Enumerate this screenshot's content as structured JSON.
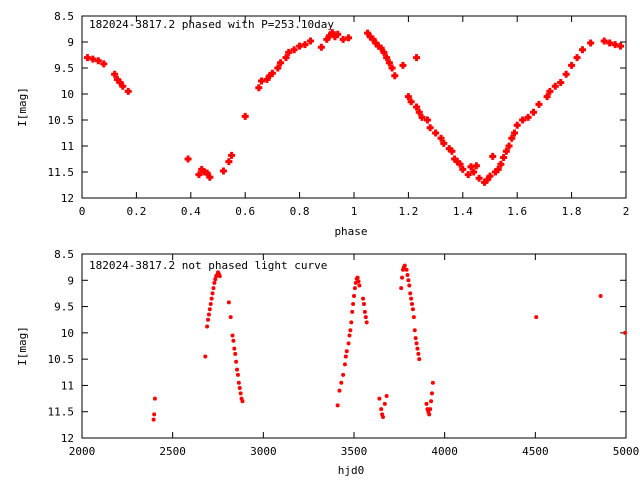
{
  "chart_data": [
    {
      "type": "scatter",
      "title": "182024-3817.2 phased with P=253.10day",
      "xlabel": "phase",
      "ylabel": "I[mag]",
      "xlim": [
        0,
        2
      ],
      "ylim": [
        12,
        8.5
      ],
      "y_inverted": true,
      "xticks": [
        0,
        0.2,
        0.4,
        0.6,
        0.8,
        1,
        1.2,
        1.4,
        1.6,
        1.8,
        2
      ],
      "xtick_labels": [
        "0",
        "0.2",
        "0.4",
        "0.6",
        "0.8",
        "1",
        "1.2",
        "1.4",
        "1.6",
        "1.8",
        "2"
      ],
      "yticks": [
        8.5,
        9,
        9.5,
        10,
        10.5,
        11,
        11.5,
        12
      ],
      "ytick_labels": [
        "8.5",
        "9",
        "9.5",
        "10",
        "10.5",
        "11",
        "11.5",
        "12"
      ],
      "grid": false,
      "marker_color": "#ff0000",
      "series": [
        {
          "points": [
            [
              0.02,
              9.3
            ],
            [
              0.04,
              9.33
            ],
            [
              0.06,
              9.36
            ],
            [
              0.08,
              9.42
            ],
            [
              0.12,
              9.62
            ],
            [
              0.13,
              9.72
            ],
            [
              0.14,
              9.78
            ],
            [
              0.15,
              9.85
            ],
            [
              0.17,
              9.95
            ],
            [
              0.39,
              11.25
            ],
            [
              0.43,
              11.55
            ],
            [
              0.44,
              11.45
            ],
            [
              0.45,
              11.5
            ],
            [
              0.46,
              11.52
            ],
            [
              0.47,
              11.6
            ],
            [
              0.52,
              11.48
            ],
            [
              0.54,
              11.3
            ],
            [
              0.55,
              11.18
            ],
            [
              0.6,
              10.43
            ],
            [
              0.65,
              9.88
            ],
            [
              0.66,
              9.75
            ],
            [
              0.68,
              9.72
            ],
            [
              0.69,
              9.65
            ],
            [
              0.7,
              9.6
            ],
            [
              0.72,
              9.5
            ],
            [
              0.73,
              9.4
            ],
            [
              0.75,
              9.3
            ],
            [
              0.76,
              9.2
            ],
            [
              0.78,
              9.15
            ],
            [
              0.8,
              9.08
            ],
            [
              0.82,
              9.05
            ],
            [
              0.84,
              8.98
            ],
            [
              0.88,
              9.1
            ],
            [
              0.9,
              8.95
            ],
            [
              0.91,
              8.88
            ],
            [
              0.92,
              8.82
            ],
            [
              0.93,
              8.9
            ],
            [
              0.94,
              8.85
            ],
            [
              0.96,
              8.95
            ],
            [
              0.98,
              8.92
            ],
            [
              1.05,
              8.83
            ],
            [
              1.06,
              8.9
            ],
            [
              1.07,
              8.95
            ],
            [
              1.08,
              9.02
            ],
            [
              1.09,
              9.08
            ],
            [
              1.1,
              9.12
            ],
            [
              1.11,
              9.2
            ],
            [
              1.12,
              9.3
            ],
            [
              1.13,
              9.4
            ],
            [
              1.14,
              9.5
            ],
            [
              1.15,
              9.65
            ],
            [
              1.18,
              9.45
            ],
            [
              1.2,
              10.05
            ],
            [
              1.21,
              10.15
            ],
            [
              1.23,
              10.25
            ],
            [
              1.23,
              9.3
            ],
            [
              1.24,
              10.35
            ],
            [
              1.25,
              10.45
            ],
            [
              1.27,
              10.5
            ],
            [
              1.28,
              10.65
            ],
            [
              1.3,
              10.75
            ],
            [
              1.32,
              10.85
            ],
            [
              1.33,
              10.95
            ],
            [
              1.35,
              11.05
            ],
            [
              1.36,
              11.1
            ],
            [
              1.37,
              11.25
            ],
            [
              1.38,
              11.3
            ],
            [
              1.39,
              11.35
            ],
            [
              1.4,
              11.45
            ],
            [
              1.42,
              11.55
            ],
            [
              1.43,
              11.4
            ],
            [
              1.44,
              11.5
            ],
            [
              1.45,
              11.38
            ],
            [
              1.46,
              11.62
            ],
            [
              1.48,
              11.7
            ],
            [
              1.49,
              11.65
            ],
            [
              1.5,
              11.58
            ],
            [
              1.51,
              11.2
            ],
            [
              1.52,
              11.5
            ],
            [
              1.53,
              11.45
            ],
            [
              1.54,
              11.35
            ],
            [
              1.55,
              11.22
            ],
            [
              1.56,
              11.1
            ],
            [
              1.57,
              11.0
            ],
            [
              1.58,
              10.85
            ],
            [
              1.59,
              10.75
            ],
            [
              1.6,
              10.6
            ],
            [
              1.62,
              10.5
            ],
            [
              1.64,
              10.45
            ],
            [
              1.66,
              10.35
            ],
            [
              1.68,
              10.2
            ],
            [
              1.71,
              10.05
            ],
            [
              1.72,
              9.95
            ],
            [
              1.74,
              9.85
            ],
            [
              1.76,
              9.78
            ],
            [
              1.78,
              9.62
            ],
            [
              1.8,
              9.45
            ],
            [
              1.82,
              9.3
            ],
            [
              1.84,
              9.15
            ],
            [
              1.87,
              9.02
            ],
            [
              1.92,
              8.98
            ],
            [
              1.94,
              9.02
            ],
            [
              1.96,
              9.05
            ],
            [
              1.98,
              9.08
            ]
          ]
        }
      ]
    },
    {
      "type": "scatter",
      "title": "182024-3817.2 not phased light curve",
      "xlabel": "hjd0",
      "ylabel": "I[mag]",
      "xlim": [
        2000,
        5000
      ],
      "ylim": [
        12,
        8.5
      ],
      "y_inverted": true,
      "xticks": [
        2000,
        2500,
        3000,
        3500,
        4000,
        4500,
        5000
      ],
      "xtick_labels": [
        "2000",
        "2500",
        "3000",
        "3500",
        "4000",
        "4500",
        "5000"
      ],
      "yticks": [
        8.5,
        9,
        9.5,
        10,
        10.5,
        11,
        11.5,
        12
      ],
      "ytick_labels": [
        "8.5",
        "9",
        "9.5",
        "10",
        "10.5",
        "11",
        "11.5",
        "12"
      ],
      "grid": false,
      "marker_color": "#ff0000",
      "series": [
        {
          "points": [
            [
              2395,
              11.65
            ],
            [
              2398,
              11.55
            ],
            [
              2402,
              11.25
            ],
            [
              2680,
              10.45
            ],
            [
              2690,
              9.88
            ],
            [
              2695,
              9.75
            ],
            [
              2700,
              9.65
            ],
            [
              2705,
              9.55
            ],
            [
              2710,
              9.45
            ],
            [
              2715,
              9.35
            ],
            [
              2720,
              9.25
            ],
            [
              2725,
              9.15
            ],
            [
              2730,
              9.05
            ],
            [
              2735,
              8.98
            ],
            [
              2740,
              8.92
            ],
            [
              2745,
              8.9
            ],
            [
              2750,
              8.85
            ],
            [
              2755,
              8.88
            ],
            [
              2760,
              8.92
            ],
            [
              2810,
              9.42
            ],
            [
              2820,
              9.7
            ],
            [
              2830,
              10.05
            ],
            [
              2835,
              10.15
            ],
            [
              2840,
              10.3
            ],
            [
              2845,
              10.4
            ],
            [
              2850,
              10.55
            ],
            [
              2855,
              10.7
            ],
            [
              2860,
              10.8
            ],
            [
              2865,
              10.95
            ],
            [
              2870,
              11.05
            ],
            [
              2875,
              11.15
            ],
            [
              2880,
              11.25
            ],
            [
              2885,
              11.3
            ],
            [
              3410,
              11.38
            ],
            [
              3420,
              11.1
            ],
            [
              3430,
              10.95
            ],
            [
              3440,
              10.8
            ],
            [
              3450,
              10.6
            ],
            [
              3455,
              10.45
            ],
            [
              3460,
              10.35
            ],
            [
              3470,
              10.2
            ],
            [
              3475,
              10.05
            ],
            [
              3480,
              9.95
            ],
            [
              3485,
              9.8
            ],
            [
              3490,
              9.6
            ],
            [
              3495,
              9.45
            ],
            [
              3500,
              9.3
            ],
            [
              3505,
              9.15
            ],
            [
              3510,
              9.05
            ],
            [
              3515,
              8.97
            ],
            [
              3520,
              8.95
            ],
            [
              3525,
              9.02
            ],
            [
              3530,
              9.1
            ],
            [
              3550,
              9.35
            ],
            [
              3555,
              9.45
            ],
            [
              3560,
              9.6
            ],
            [
              3565,
              9.7
            ],
            [
              3570,
              9.8
            ],
            [
              3640,
              11.25
            ],
            [
              3650,
              11.45
            ],
            [
              3655,
              11.55
            ],
            [
              3660,
              11.6
            ],
            [
              3670,
              11.35
            ],
            [
              3680,
              11.2
            ],
            [
              3760,
              9.15
            ],
            [
              3765,
              8.95
            ],
            [
              3770,
              8.8
            ],
            [
              3775,
              8.75
            ],
            [
              3780,
              8.72
            ],
            [
              3790,
              8.8
            ],
            [
              3795,
              8.9
            ],
            [
              3800,
              9.0
            ],
            [
              3805,
              9.1
            ],
            [
              3810,
              9.25
            ],
            [
              3815,
              9.35
            ],
            [
              3820,
              9.45
            ],
            [
              3825,
              9.55
            ],
            [
              3830,
              9.7
            ],
            [
              3835,
              9.95
            ],
            [
              3840,
              10.1
            ],
            [
              3845,
              10.2
            ],
            [
              3850,
              10.3
            ],
            [
              3855,
              10.4
            ],
            [
              3860,
              10.5
            ],
            [
              3900,
              11.35
            ],
            [
              3905,
              11.45
            ],
            [
              3910,
              11.5
            ],
            [
              3915,
              11.55
            ],
            [
              3920,
              11.45
            ],
            [
              3925,
              11.3
            ],
            [
              3930,
              11.15
            ],
            [
              3935,
              10.95
            ],
            [
              4505,
              9.7
            ],
            [
              4860,
              9.3
            ],
            [
              4995,
              10.0
            ]
          ]
        }
      ]
    }
  ]
}
